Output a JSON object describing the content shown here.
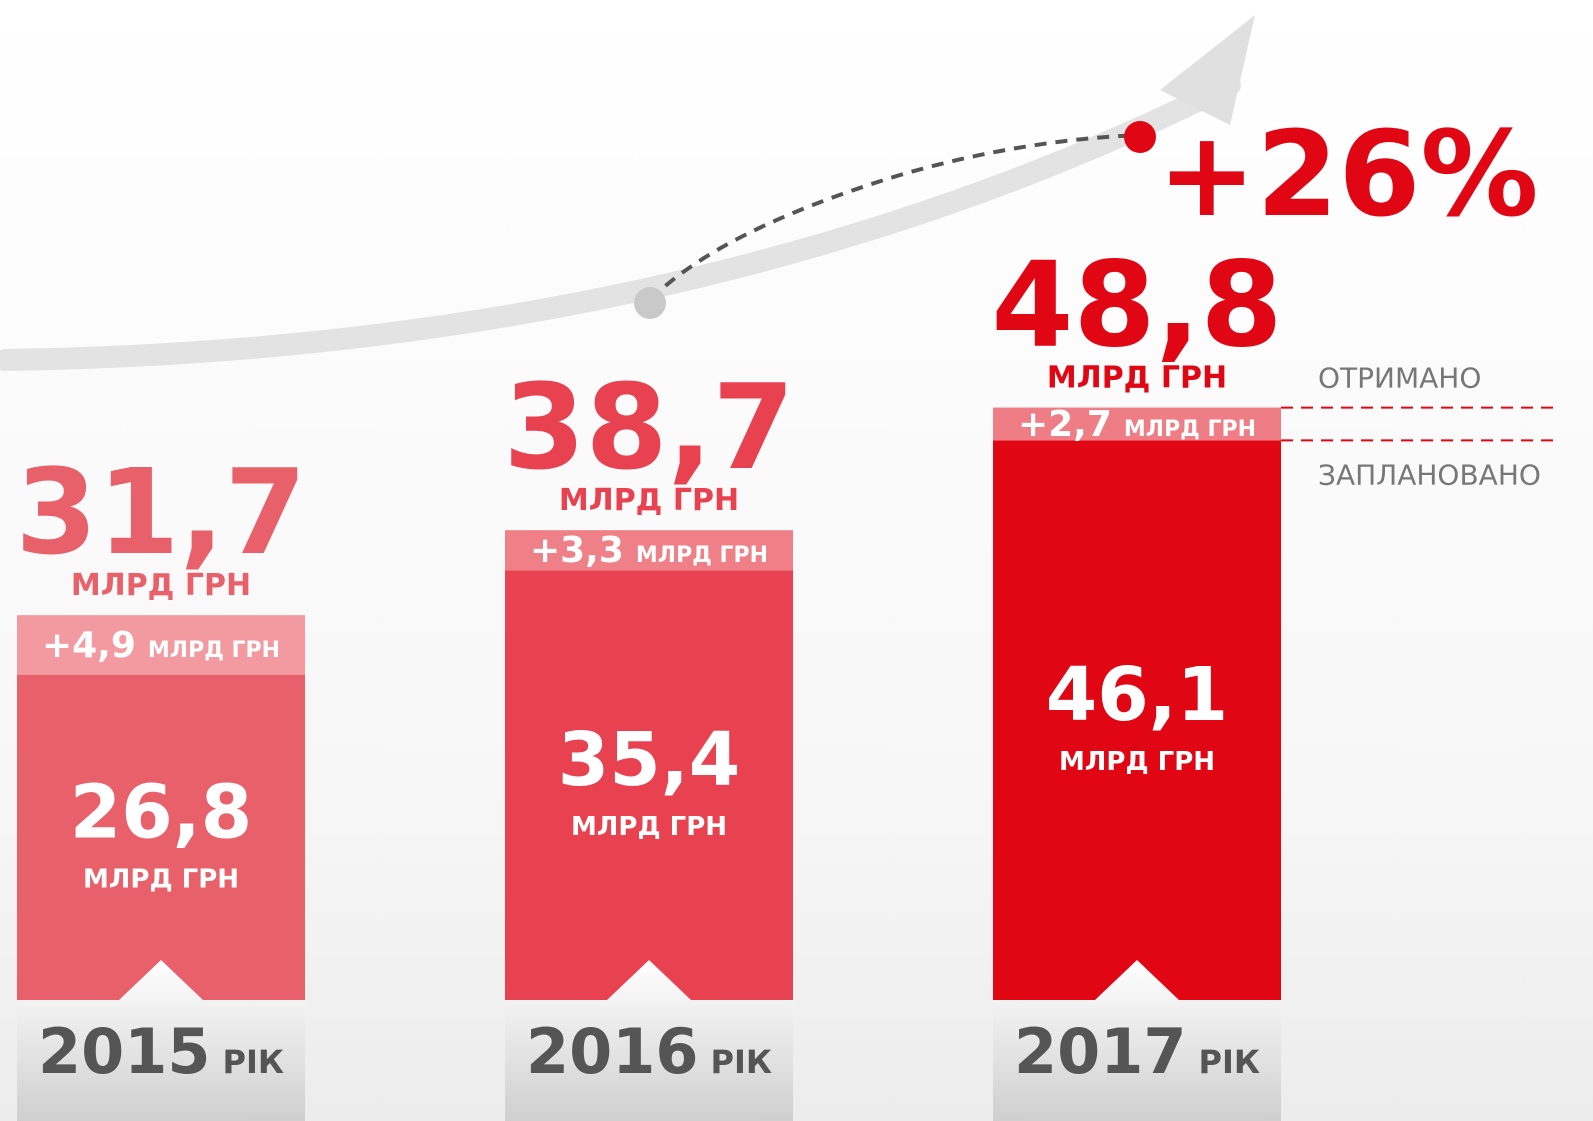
{
  "chart_data": {
    "type": "stacked_bar",
    "categories": [
      "2015",
      "2016",
      "2017"
    ],
    "period_label": "РІК",
    "unit": "МЛРД ГРН",
    "series": [
      {
        "name": "ЗАПЛАНОВАНО",
        "color": [
          "#e8606a",
          "#e8414f",
          "#e10613"
        ],
        "values": [
          26.8,
          35.4,
          46.1
        ],
        "value_labels": [
          "26,8",
          "35,4",
          "46,1"
        ]
      },
      {
        "name": "ОТРИМАНО",
        "color": [
          "#f29aa0",
          "#f08088",
          "#ee7d85"
        ],
        "values": [
          4.9,
          3.3,
          2.7
        ],
        "value_labels": [
          "+4,9",
          "+3,3",
          "+2,7"
        ]
      }
    ],
    "totals": [
      31.7,
      38.7,
      48.8
    ],
    "total_labels": [
      "31,7",
      "38,7",
      "48,8"
    ],
    "total_colors": [
      "#e8606a",
      "#e8414f",
      "#e10613"
    ],
    "annotation": "+26%",
    "ylim": [
      0,
      50
    ]
  }
}
